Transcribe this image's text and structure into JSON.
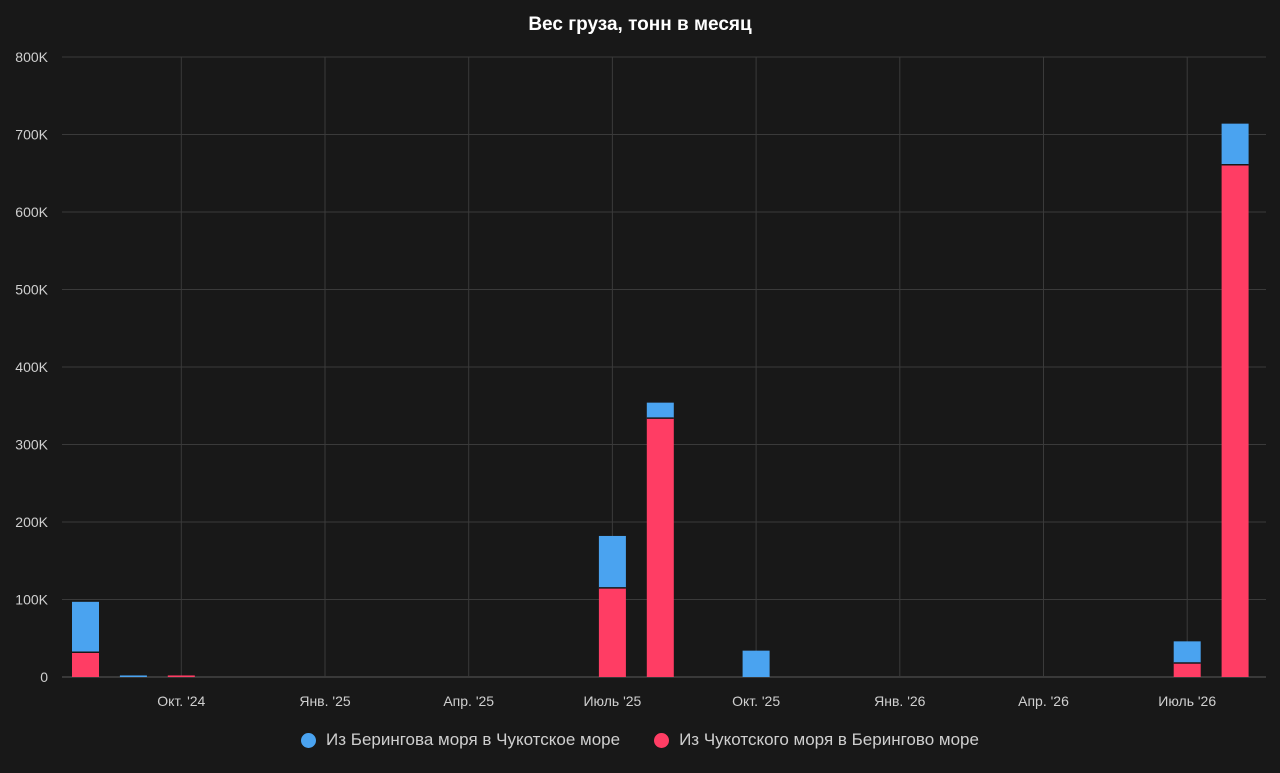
{
  "chart_data": {
    "type": "bar",
    "stacked": true,
    "title": "Вес груза, тонн в месяц",
    "xlabel": "",
    "ylabel": "",
    "ylim": [
      0,
      800000
    ],
    "yticks": [
      0,
      100000,
      200000,
      300000,
      400000,
      500000,
      600000,
      700000,
      800000
    ],
    "ytick_labels": [
      "0",
      "100K",
      "200K",
      "300K",
      "400K",
      "500K",
      "600K",
      "700K",
      "800K"
    ],
    "xtick_labels": [
      "Окт. '24",
      "Янв. '25",
      "Апр. '25",
      "Июль '25",
      "Окт. '25",
      "Янв. '26",
      "Апр. '26",
      "Июль '26"
    ],
    "grid": true,
    "legend_position": "bottom",
    "categories": [
      "2024-08",
      "2024-09",
      "2024-10",
      "2025-07",
      "2025-08",
      "2025-10",
      "2026-07",
      "2026-08"
    ],
    "series": [
      {
        "name": "Из Чукотского моря в Берингово море",
        "color": "#ff3d64",
        "values": [
          32000,
          0,
          2000,
          115000,
          334000,
          0,
          18000,
          661000
        ]
      },
      {
        "name": "Из Берингова моря в Чукотское море",
        "color": "#4aa3f0",
        "values": [
          65000,
          2000,
          0,
          67000,
          20000,
          34000,
          28000,
          53000
        ]
      }
    ]
  },
  "legend": [
    {
      "label": "Из Берингова моря в Чукотское море",
      "color": "#4aa3f0"
    },
    {
      "label": "Из Чукотского моря в Берингово море",
      "color": "#ff3d64"
    }
  ]
}
